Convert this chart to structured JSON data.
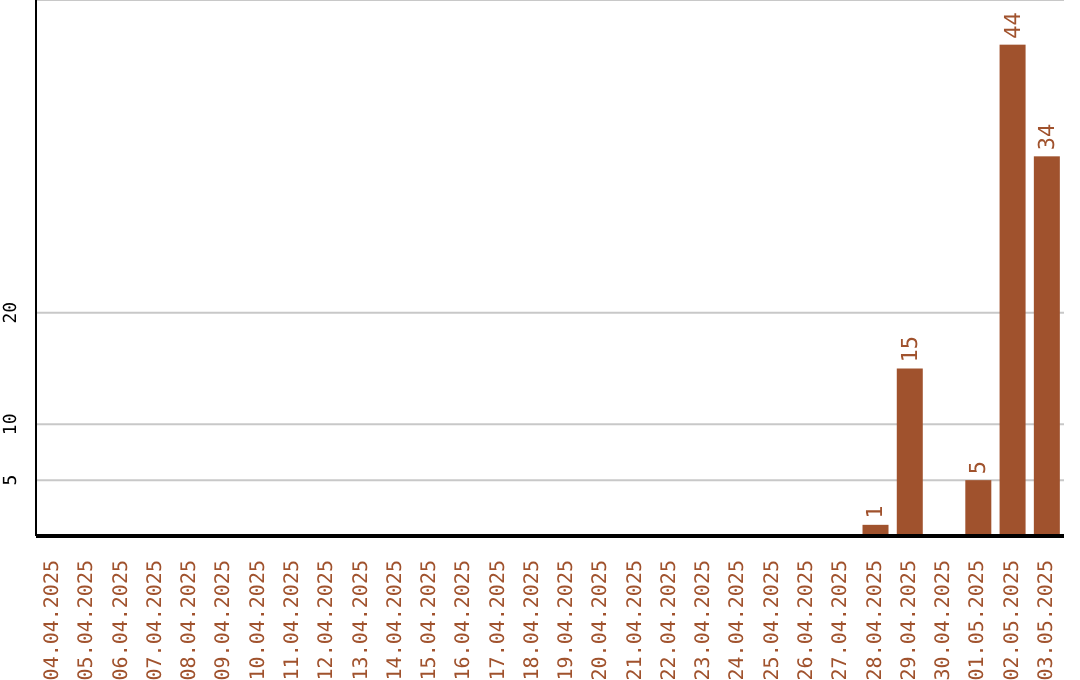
{
  "chart_data": {
    "type": "bar",
    "categories": [
      "04.04.2025",
      "05.04.2025",
      "06.04.2025",
      "07.04.2025",
      "08.04.2025",
      "09.04.2025",
      "10.04.2025",
      "11.04.2025",
      "12.04.2025",
      "13.04.2025",
      "14.04.2025",
      "15.04.2025",
      "16.04.2025",
      "17.04.2025",
      "18.04.2025",
      "19.04.2025",
      "20.04.2025",
      "21.04.2025",
      "22.04.2025",
      "23.04.2025",
      "24.04.2025",
      "25.04.2025",
      "26.04.2025",
      "27.04.2025",
      "28.04.2025",
      "29.04.2025",
      "30.04.2025",
      "01.05.2025",
      "02.05.2025",
      "03.05.2025"
    ],
    "values": [
      0,
      0,
      0,
      0,
      0,
      0,
      0,
      0,
      0,
      0,
      0,
      0,
      0,
      0,
      0,
      0,
      0,
      0,
      0,
      0,
      0,
      0,
      0,
      0,
      1,
      15,
      0,
      5,
      44,
      34
    ],
    "value_labels": [
      null,
      null,
      null,
      null,
      null,
      null,
      null,
      null,
      null,
      null,
      null,
      null,
      null,
      null,
      null,
      null,
      null,
      null,
      null,
      null,
      null,
      null,
      null,
      null,
      "1",
      "15",
      null,
      "5",
      "44",
      "34"
    ],
    "color": "#a0522d",
    "ylim": [
      0,
      48
    ],
    "yticks": [
      5,
      10,
      20
    ],
    "grid": "y"
  }
}
